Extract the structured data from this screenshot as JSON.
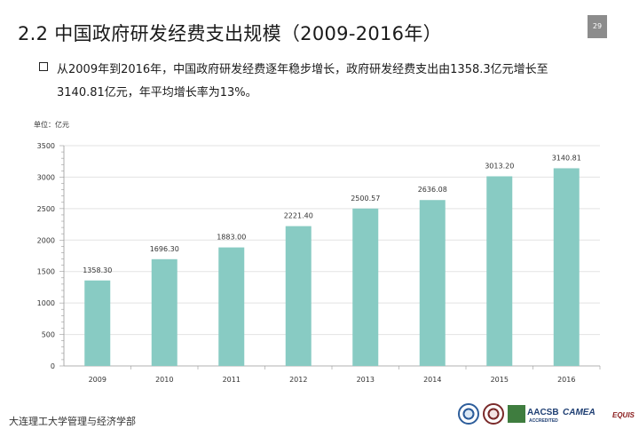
{
  "header": {
    "title": "2.2  中国政府研发经费支出规模（2009-2016年）",
    "page_number": "29"
  },
  "summary": {
    "line1": "从2009年到2016年，中国政府研发经费逐年稳步增长，政府研发经费支出由1358.3亿元增长至",
    "line2": "3140.81亿元，年平均增长率为13%。"
  },
  "chart_data": {
    "type": "bar",
    "unit_label": "单位：亿元",
    "categories": [
      "2009",
      "2010",
      "2011",
      "2012",
      "2013",
      "2014",
      "2015",
      "2016"
    ],
    "values": [
      1358.3,
      1696.3,
      1883.0,
      2221.4,
      2500.57,
      2636.08,
      3013.2,
      3140.81
    ],
    "value_labels": [
      "1358.30",
      "1696.30",
      "1883.00",
      "2221.40",
      "2500.57",
      "2636.08",
      "3013.20",
      "3140.81"
    ],
    "ylim": [
      0,
      3500
    ],
    "yticks": [
      "0",
      "500",
      "1000",
      "1500",
      "2000",
      "2500",
      "3000",
      "3500"
    ],
    "grid": true,
    "bar_color": "#88cbc3"
  },
  "footer": {
    "institution": "大连理工大学管理与经济学部",
    "logos": {
      "aacsb": "AACSB",
      "aacsb_sub": "ACCREDITED",
      "camea": "CAMEA",
      "equis": "EQUIS"
    }
  }
}
